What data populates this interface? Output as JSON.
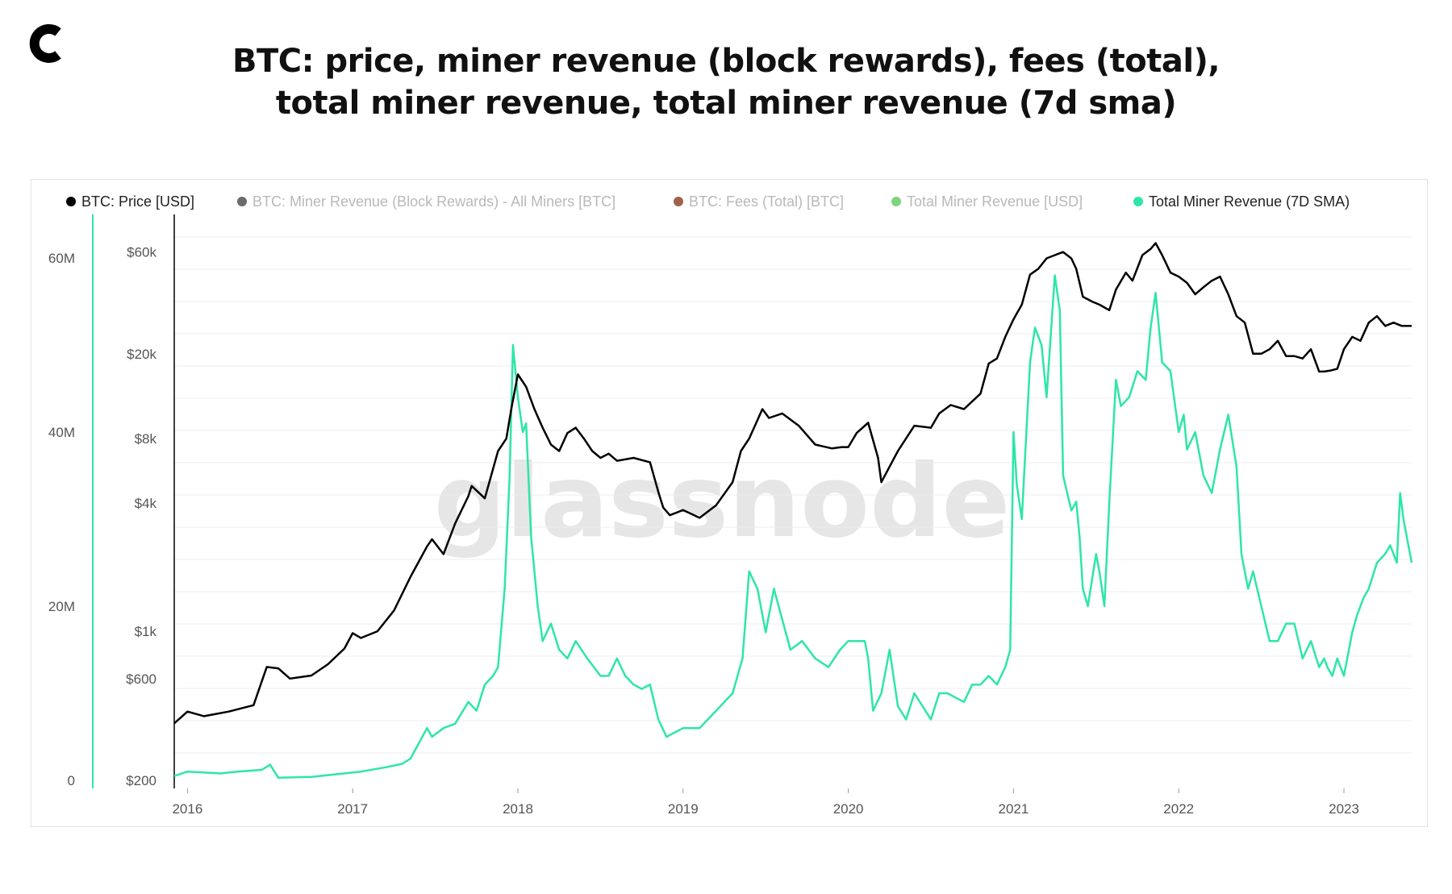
{
  "header": {
    "title_line1": "BTC: price, miner revenue (block rewards), fees (total),",
    "title_line2": "total miner revenue, total miner revenue (7d sma)",
    "logo": "cryptoslate-c-logo"
  },
  "colors": {
    "price": "#000000",
    "block_rewards": "#6b6b6b",
    "fees": "#a0614a",
    "total_revenue": "#7ed47e",
    "sma": "#2ee6a6",
    "grid": "#ececec"
  },
  "chart_data": {
    "type": "line",
    "watermark": "glassnode",
    "legend": [
      {
        "label": "BTC: Price [USD]",
        "color": "#000000",
        "active": true
      },
      {
        "label": "BTC: Miner Revenue (Block Rewards) - All Miners [BTC]",
        "color": "#6b6b6b",
        "active": false
      },
      {
        "label": "BTC: Fees (Total) [BTC]",
        "color": "#a0614a",
        "active": false
      },
      {
        "label": "Total Miner Revenue [USD]",
        "color": "#7ed47e",
        "active": false
      },
      {
        "label": "Total Miner Revenue (7D SMA)",
        "color": "#2ee6a6",
        "active": true
      }
    ],
    "x_ticks": [
      "2016",
      "2017",
      "2018",
      "2019",
      "2020",
      "2021",
      "2022",
      "2023"
    ],
    "x_range": [
      2015.92,
      2023.41
    ],
    "y_left": {
      "ticks": [
        "0",
        "20M",
        "40M",
        "60M"
      ],
      "tick_values": [
        0,
        20,
        40,
        60
      ],
      "range": [
        0,
        65
      ],
      "unit": "M USD"
    },
    "y_right": {
      "ticks": [
        "$200",
        "$600",
        "$1k",
        "$4k",
        "$8k",
        "$20k",
        "$60k"
      ],
      "tick_values": [
        200,
        600,
        1000,
        4000,
        8000,
        20000,
        60000
      ],
      "scale": "log",
      "range": [
        200,
        90000
      ]
    },
    "series": [
      {
        "name": "BTC: Price [USD]",
        "axis": "right",
        "x": [
          2015.92,
          2016.0,
          2016.1,
          2016.25,
          2016.4,
          2016.48,
          2016.55,
          2016.62,
          2016.75,
          2016.85,
          2016.95,
          2017.0,
          2017.05,
          2017.15,
          2017.25,
          2017.35,
          2017.45,
          2017.48,
          2017.55,
          2017.62,
          2017.7,
          2017.72,
          2017.8,
          2017.88,
          2017.93,
          2017.96,
          2018.0,
          2018.05,
          2018.1,
          2018.15,
          2018.2,
          2018.25,
          2018.3,
          2018.35,
          2018.4,
          2018.45,
          2018.5,
          2018.55,
          2018.6,
          2018.7,
          2018.8,
          2018.85,
          2018.88,
          2018.92,
          2018.96,
          2019.0,
          2019.1,
          2019.2,
          2019.3,
          2019.35,
          2019.4,
          2019.48,
          2019.52,
          2019.6,
          2019.7,
          2019.8,
          2019.9,
          2019.96,
          2020.0,
          2020.05,
          2020.12,
          2020.18,
          2020.2,
          2020.3,
          2020.4,
          2020.5,
          2020.55,
          2020.62,
          2020.7,
          2020.8,
          2020.85,
          2020.9,
          2020.95,
          2021.0,
          2021.05,
          2021.1,
          2021.15,
          2021.2,
          2021.25,
          2021.3,
          2021.35,
          2021.38,
          2021.42,
          2021.48,
          2021.52,
          2021.58,
          2021.62,
          2021.68,
          2021.72,
          2021.78,
          2021.83,
          2021.86,
          2021.9,
          2021.95,
          2022.0,
          2022.05,
          2022.1,
          2022.15,
          2022.2,
          2022.25,
          2022.3,
          2022.35,
          2022.4,
          2022.45,
          2022.5,
          2022.55,
          2022.6,
          2022.65,
          2022.7,
          2022.75,
          2022.8,
          2022.85,
          2022.88,
          2022.92,
          2022.96,
          2023.0,
          2023.05,
          2023.1,
          2023.15,
          2023.2,
          2023.25,
          2023.3,
          2023.35,
          2023.41
        ],
        "values": [
          370,
          420,
          400,
          420,
          450,
          680,
          670,
          600,
          620,
          700,
          830,
          980,
          930,
          1000,
          1250,
          1800,
          2500,
          2700,
          2300,
          3200,
          4300,
          4800,
          4200,
          7000,
          8000,
          11000,
          16000,
          14000,
          11000,
          9000,
          7500,
          7000,
          8500,
          9000,
          8000,
          7000,
          6500,
          6800,
          6300,
          6500,
          6200,
          4500,
          3800,
          3500,
          3600,
          3700,
          3400,
          3900,
          5000,
          7000,
          8000,
          11000,
          10000,
          10500,
          9200,
          7500,
          7200,
          7300,
          7300,
          8500,
          9500,
          6500,
          5000,
          7000,
          9200,
          9000,
          10500,
          11500,
          11000,
          13000,
          18000,
          19000,
          24000,
          29000,
          34000,
          47000,
          50000,
          56000,
          58000,
          60000,
          56000,
          50000,
          37000,
          35000,
          34000,
          32000,
          40000,
          48000,
          44000,
          58000,
          62000,
          66000,
          58000,
          48000,
          46000,
          43000,
          38000,
          41000,
          44000,
          46000,
          38000,
          30000,
          28000,
          20000,
          20000,
          21000,
          23000,
          19500,
          19500,
          19000,
          21000,
          16500,
          16500,
          16700,
          17000,
          21000,
          24000,
          23000,
          28000,
          30000,
          27000,
          28000,
          27000,
          27000
        ]
      },
      {
        "name": "Total Miner Revenue (7D SMA)",
        "axis": "left",
        "x": [
          2015.92,
          2016.0,
          2016.2,
          2016.3,
          2016.45,
          2016.5,
          2016.55,
          2016.75,
          2016.95,
          2017.05,
          2017.2,
          2017.3,
          2017.35,
          2017.45,
          2017.48,
          2017.55,
          2017.62,
          2017.7,
          2017.75,
          2017.8,
          2017.85,
          2017.88,
          2017.92,
          2017.95,
          2017.97,
          2018.0,
          2018.03,
          2018.05,
          2018.08,
          2018.12,
          2018.15,
          2018.2,
          2018.25,
          2018.3,
          2018.35,
          2018.42,
          2018.5,
          2018.55,
          2018.6,
          2018.65,
          2018.7,
          2018.75,
          2018.8,
          2018.85,
          2018.9,
          2019.0,
          2019.1,
          2019.2,
          2019.3,
          2019.36,
          2019.4,
          2019.45,
          2019.5,
          2019.55,
          2019.65,
          2019.72,
          2019.8,
          2019.88,
          2019.95,
          2020.0,
          2020.1,
          2020.12,
          2020.15,
          2020.2,
          2020.25,
          2020.3,
          2020.35,
          2020.4,
          2020.5,
          2020.55,
          2020.6,
          2020.7,
          2020.75,
          2020.8,
          2020.85,
          2020.9,
          2020.95,
          2020.98,
          2021.0,
          2021.02,
          2021.05,
          2021.1,
          2021.13,
          2021.17,
          2021.2,
          2021.25,
          2021.28,
          2021.3,
          2021.35,
          2021.38,
          2021.4,
          2021.42,
          2021.45,
          2021.5,
          2021.52,
          2021.55,
          2021.58,
          2021.62,
          2021.65,
          2021.7,
          2021.75,
          2021.8,
          2021.83,
          2021.86,
          2021.9,
          2021.95,
          2022.0,
          2022.03,
          2022.05,
          2022.1,
          2022.15,
          2022.2,
          2022.25,
          2022.3,
          2022.35,
          2022.38,
          2022.42,
          2022.45,
          2022.5,
          2022.55,
          2022.6,
          2022.65,
          2022.7,
          2022.75,
          2022.8,
          2022.85,
          2022.88,
          2022.9,
          2022.93,
          2022.96,
          2023.0,
          2023.05,
          2023.08,
          2023.12,
          2023.15,
          2023.2,
          2023.25,
          2023.28,
          2023.32,
          2023.34,
          2023.36,
          2023.41
        ],
        "values": [
          0.5,
          1.0,
          0.8,
          1.0,
          1.2,
          1.8,
          0.3,
          0.4,
          0.8,
          1.0,
          1.5,
          1.9,
          2.5,
          6.0,
          5.0,
          6.0,
          6.5,
          9.0,
          8.0,
          11.0,
          12.0,
          13.0,
          22.0,
          35.0,
          50.0,
          44.0,
          40.0,
          41.0,
          28.0,
          20.0,
          16.0,
          18.0,
          15.0,
          14.0,
          16.0,
          14.0,
          12.0,
          12.0,
          14.0,
          12.0,
          11.0,
          10.5,
          11.0,
          7.0,
          5.0,
          6.0,
          6.0,
          8.0,
          10.0,
          14.0,
          24.0,
          22.0,
          17.0,
          22.0,
          15.0,
          16.0,
          14.0,
          13.0,
          15.0,
          16.0,
          16.0,
          14.0,
          8.0,
          10.0,
          15.0,
          8.5,
          7.0,
          10.0,
          7.0,
          10.0,
          10.0,
          9.0,
          11.0,
          11.0,
          12.0,
          11.0,
          13.0,
          15.0,
          40.0,
          34.0,
          30.0,
          48.0,
          52.0,
          50.0,
          44.0,
          58.0,
          54.0,
          35.0,
          31.0,
          32.0,
          28.0,
          22.0,
          20.0,
          26.0,
          24.0,
          20.0,
          32.0,
          46.0,
          43.0,
          44.0,
          47.0,
          46.0,
          52.0,
          56.0,
          48.0,
          47.0,
          40.0,
          42.0,
          38.0,
          40.0,
          35.0,
          33.0,
          38.0,
          42.0,
          36.0,
          26.0,
          22.0,
          24.0,
          20.0,
          16.0,
          16.0,
          18.0,
          18.0,
          14.0,
          16.0,
          13.0,
          14.0,
          13.0,
          12.0,
          14.0,
          12.0,
          17.0,
          19.0,
          21.0,
          22.0,
          25.0,
          26.0,
          27.0,
          25.0,
          33.0,
          30.0,
          25.0
        ]
      }
    ]
  }
}
